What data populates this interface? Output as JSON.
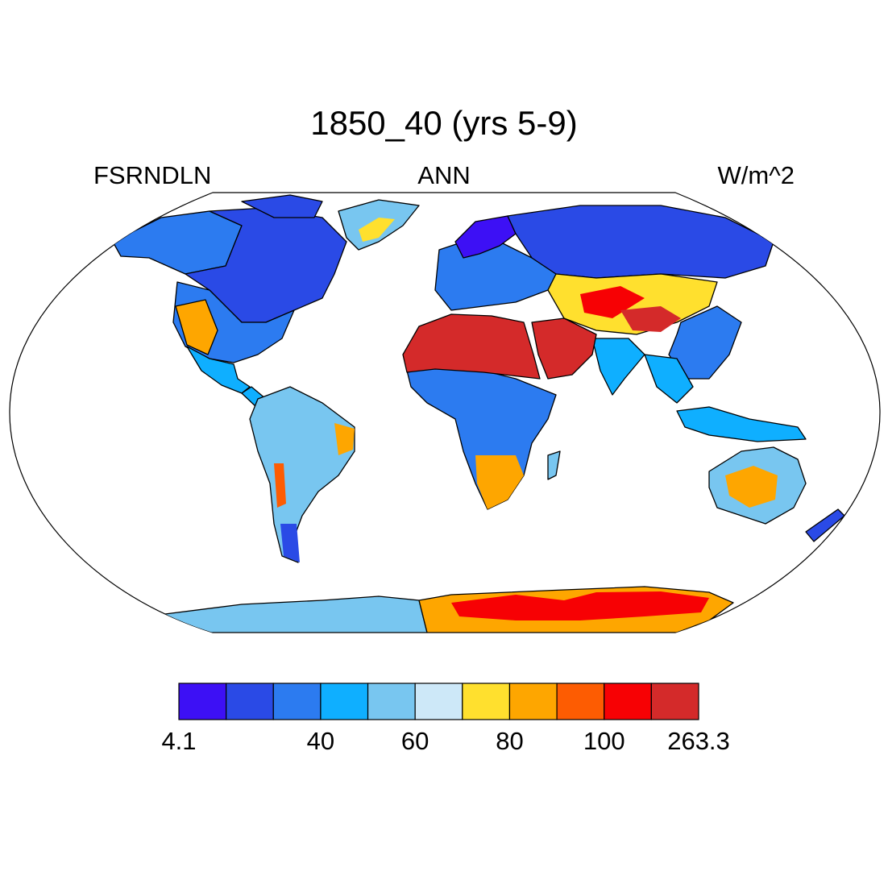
{
  "figure": {
    "title": "1850_40 (yrs 5-9)",
    "variable": "FSRNDLN",
    "period": "ANN",
    "units": "W/m^2"
  },
  "map": {
    "projection": "robinson",
    "land_outline_color": "#000000",
    "ocean_color": "#ffffff"
  },
  "colorbar": {
    "colors": [
      "#3d10f5",
      "#2a4ae6",
      "#2c7bf0",
      "#0fafff",
      "#78c6f0",
      "#cde8f8",
      "#ffe02e",
      "#fea600",
      "#fd5c02",
      "#f70104",
      "#d42a2a"
    ],
    "labels": [
      {
        "text": "4.1",
        "box": 0
      },
      {
        "text": "40",
        "box": 3
      },
      {
        "text": "60",
        "box": 5
      },
      {
        "text": "80",
        "box": 7
      },
      {
        "text": "100",
        "box": 9
      },
      {
        "text": "263.3",
        "box": 11
      }
    ]
  },
  "regions": [
    {
      "name": "canada",
      "color": "#2a4ae6"
    },
    {
      "name": "alaska",
      "color": "#2c7bf0"
    },
    {
      "name": "arctic-islands",
      "color": "#2a4ae6"
    },
    {
      "name": "greenland",
      "color": "#78c6f0"
    },
    {
      "name": "greenland-core",
      "color": "#ffe02e"
    },
    {
      "name": "usa",
      "color": "#2c7bf0"
    },
    {
      "name": "us-west",
      "color": "#fea600"
    },
    {
      "name": "mexico",
      "color": "#0fafff"
    },
    {
      "name": "central-america",
      "color": "#0fafff"
    },
    {
      "name": "south-america",
      "color": "#78c6f0"
    },
    {
      "name": "sa-northeast",
      "color": "#fea600"
    },
    {
      "name": "patagonia",
      "color": "#2a4ae6"
    },
    {
      "name": "andes-dry",
      "color": "#fd5c02"
    },
    {
      "name": "europe",
      "color": "#2c7bf0"
    },
    {
      "name": "scandinavia",
      "color": "#3d10f5"
    },
    {
      "name": "siberia",
      "color": "#2a4ae6"
    },
    {
      "name": "central-asia",
      "color": "#ffe02e"
    },
    {
      "name": "central-asia-hot",
      "color": "#f70104"
    },
    {
      "name": "tibet",
      "color": "#d42a2a"
    },
    {
      "name": "east-asia",
      "color": "#2c7bf0"
    },
    {
      "name": "india",
      "color": "#0fafff"
    },
    {
      "name": "southeast-asia",
      "color": "#0fafff"
    },
    {
      "name": "africa-central",
      "color": "#2c7bf0"
    },
    {
      "name": "sahara",
      "color": "#d42a2a"
    },
    {
      "name": "arabia",
      "color": "#d42a2a"
    },
    {
      "name": "southern-africa",
      "color": "#fea600"
    },
    {
      "name": "madagascar",
      "color": "#78c6f0"
    },
    {
      "name": "australia",
      "color": "#78c6f0"
    },
    {
      "name": "australia-interior",
      "color": "#fea600"
    },
    {
      "name": "new-zealand",
      "color": "#2a4ae6"
    },
    {
      "name": "indonesia",
      "color": "#0fafff"
    },
    {
      "name": "antarctica-west",
      "color": "#78c6f0"
    },
    {
      "name": "antarctica-east",
      "color": "#fea600"
    },
    {
      "name": "antarctica-east-hot",
      "color": "#f70104"
    }
  ]
}
